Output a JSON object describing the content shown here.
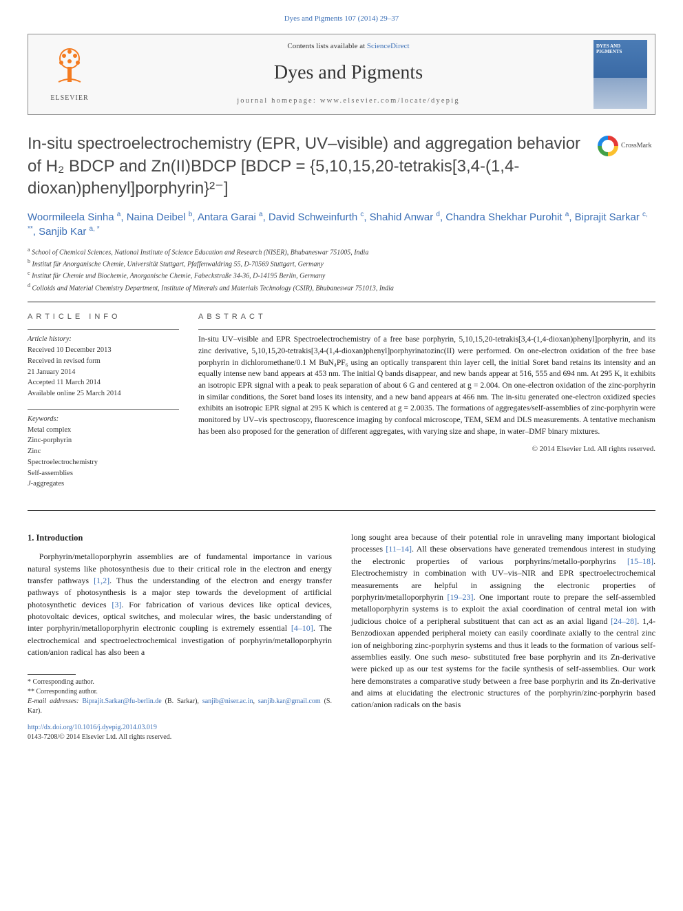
{
  "top_citation": "Dyes and Pigments 107 (2014) 29–37",
  "header": {
    "contents_prefix": "Contents lists available at ",
    "contents_link": "ScienceDirect",
    "journal": "Dyes and Pigments",
    "homepage": "journal homepage: www.elsevier.com/locate/dyepig",
    "publisher": "ELSEVIER",
    "cover_title": "DYES and PIGMENTS"
  },
  "crossmark_label": "CrossMark",
  "title": "In-situ spectroelectrochemistry (EPR, UV–visible) and aggregation behavior of H₂ BDCP and Zn(II)BDCP [BDCP = {5,10,15,20-tetrakis[3,4-(1,4-dioxan)phenyl]porphyrin}²⁻]",
  "authors_html": "Woormileela Sinha <sup>a</sup>, Naina Deibel <sup>b</sup>, Antara Garai <sup>a</sup>, David Schweinfurth <sup>c</sup>, Shahid Anwar <sup>d</sup>, Chandra Shekhar Purohit <sup>a</sup>, Biprajit Sarkar <sup>c, **</sup>, Sanjib Kar <sup>a, *</sup>",
  "affiliations": [
    {
      "sup": "a",
      "text": "School of Chemical Sciences, National Institute of Science Education and Research (NISER), Bhubaneswar 751005, India"
    },
    {
      "sup": "b",
      "text": "Institut für Anorganische Chemie, Universität Stuttgart, Pfaffenwaldring 55, D-70569 Stuttgart, Germany"
    },
    {
      "sup": "c",
      "text": "Institut für Chemie und Biochemie, Anorganische Chemie, Fabeckstraße 34-36, D-14195 Berlin, Germany"
    },
    {
      "sup": "d",
      "text": "Colloids and Material Chemistry Department, Institute of Minerals and Materials Technology (CSIR), Bhubaneswar 751013, India"
    }
  ],
  "article_info": {
    "label": "ARTICLE INFO",
    "history_label": "Article history:",
    "history": [
      "Received 10 December 2013",
      "Received in revised form",
      "21 January 2014",
      "Accepted 11 March 2014",
      "Available online 25 March 2014"
    ],
    "keywords_label": "Keywords:",
    "keywords": [
      "Metal complex",
      "Zinc-porphyrin",
      "Zinc",
      "Spectroelectrochemistry",
      "Self-assemblies",
      "J-aggregates"
    ]
  },
  "abstract": {
    "label": "ABSTRACT",
    "text": "In-situ UV–visible and EPR Spectroelectrochemistry of a free base porphyrin, 5,10,15,20-tetrakis[3,4-(1,4-dioxan)phenyl]porphyrin, and its zinc derivative, 5,10,15,20-tetrakis[3,4-(1,4-dioxan)phenyl]porphyrinatozinc(II) were performed. On one-electron oxidation of the free base porphyrin in dichloromethane/0.1 M BuN₄PF₆ using an optically transparent thin layer cell, the initial Soret band retains its intensity and an equally intense new band appears at 453 nm. The initial Q bands disappear, and new bands appear at 516, 555 and 694 nm. At 295 K, it exhibits an isotropic EPR signal with a peak to peak separation of about 6 G and centered at g = 2.004. On one-electron oxidation of the zinc-porphyrin in similar conditions, the Soret band loses its intensity, and a new band appears at 466 nm. The in-situ generated one-electron oxidized species exhibits an isotropic EPR signal at 295 K which is centered at g = 2.0035. The formations of aggregates/self-assemblies of zinc-porphyrin were monitored by UV–vis spectroscopy, fluorescence imaging by confocal microscope, TEM, SEM and DLS measurements. A tentative mechanism has been also proposed for the generation of different aggregates, with varying size and shape, in water–DMF binary mixtures.",
    "copyright": "© 2014 Elsevier Ltd. All rights reserved."
  },
  "intro": {
    "heading": "1. Introduction",
    "col1": "Porphyrin/metalloporphyrin assemblies are of fundamental importance in various natural systems like photosynthesis due to their critical role in the electron and energy transfer pathways [1,2]. Thus the understanding of the electron and energy transfer pathways of photosynthesis is a major step towards the development of artificial photosynthetic devices [3]. For fabrication of various devices like optical devices, photovoltaic devices, optical switches, and molecular wires, the basic understanding of inter porphyrin/metalloporphyrin electronic coupling is extremely essential [4–10]. The electrochemical and spectroelectrochemical investigation of porphyrin/metalloporphyrin cation/anion radical has also been a",
    "col2": "long sought area because of their potential role in unraveling many important biological processes [11–14]. All these observations have generated tremendous interest in studying the electronic properties of various porphyrins/metallo-porphyrins [15–18]. Electrochemistry in combination with UV–vis–NIR and EPR spectroelectrochemical measurements are helpful in assigning the electronic properties of porphyrin/metalloporphyrin [19–23]. One important route to prepare the self-assembled metalloporphyrin systems is to exploit the axial coordination of central metal ion with judicious choice of a peripheral substituent that can act as an axial ligand [24–28]. 1,4-Benzodioxan appended peripheral moiety can easily coordinate axially to the central zinc ion of neighboring zinc-porphyrin systems and thus it leads to the formation of various self-assemblies easily. One such meso- substituted free base porphyrin and its Zn-derivative were picked up as our test systems for the facile synthesis of self-assemblies. Our work here demonstrates a comparative study between a free base porphyrin and its Zn-derivative and aims at elucidating the electronic structures of the porphyrin/zinc-porphyrin based cation/anion radicals on the basis"
  },
  "footer": {
    "corr1": "* Corresponding author.",
    "corr2": "** Corresponding author.",
    "email_label": "E-mail addresses: ",
    "email1": "Biprajit.Sarkar@fu-berlin.de",
    "email1_who": " (B. Sarkar), ",
    "email2": "sanjib@niser.ac.in",
    "email2_sep": ", ",
    "email3": "sanjib.kar@gmail.com",
    "email3_who": " (S. Kar).",
    "doi": "http://dx.doi.org/10.1016/j.dyepig.2014.03.019",
    "issn_copyright": "0143-7208/© 2014 Elsevier Ltd. All rights reserved."
  },
  "colors": {
    "link": "#3b6fb6",
    "elsevier_orange": "#f47b20",
    "text": "#1a1a1a",
    "rule": "#222222"
  }
}
